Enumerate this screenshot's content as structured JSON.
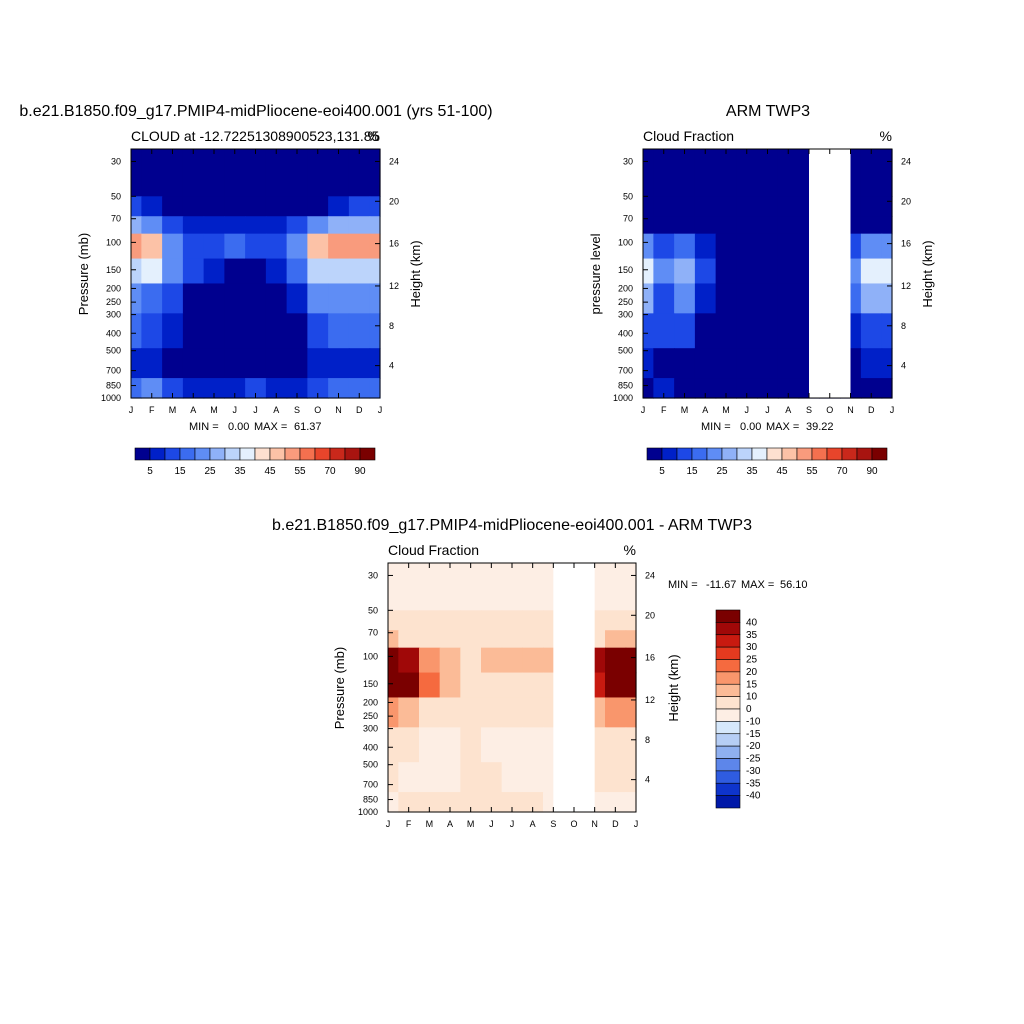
{
  "colors": {
    "sequential": [
      "#00008f",
      "#0020c8",
      "#1d48e6",
      "#3b6cf0",
      "#5f8df5",
      "#8fb1f8",
      "#bcd4fb",
      "#e4f0fd",
      "#fde0d0",
      "#fcc2a7",
      "#f99b7d",
      "#f4704f",
      "#e8452b",
      "#c9281b",
      "#a81410",
      "#7a0000"
    ],
    "diverging": [
      "#7a0000",
      "#a00808",
      "#c81a10",
      "#e43a1f",
      "#f56a3f",
      "#f9966c",
      "#fbbb97",
      "#fde3cf",
      "#fdeee4",
      "#d6e8fb",
      "#b6cef5",
      "#8fb0f0",
      "#5d86ea",
      "#2f5ce0",
      "#0e34cc",
      "#0019a8",
      "#000a7a"
    ]
  },
  "chart_data": [
    {
      "type": "heatmap",
      "title": "b.e21.B1850.f09_g17.PMIP4-midPliocene-eoi400.001 (yrs 51-100)",
      "subtitle_left": "CLOUD at -12.72251308900523,131.85",
      "subtitle_right": "%",
      "ylabel": "Pressure (mb)",
      "ylabel_right": "Height (km)",
      "x_ticks": [
        "J",
        "F",
        "M",
        "A",
        "M",
        "J",
        "J",
        "A",
        "S",
        "O",
        "N",
        "D",
        "J"
      ],
      "y_ticks": [
        "30",
        "50",
        "70",
        "100",
        "150",
        "200",
        "250",
        "300",
        "400",
        "500",
        "700",
        "850",
        "1000"
      ],
      "y_ticks_right": [
        "24",
        "20",
        "16",
        "12",
        "8",
        "4"
      ],
      "stats": {
        "min_label": "MIN =",
        "min": "0.00",
        "max_label": "MAX =",
        "max": "61.37"
      },
      "colorbar_labels": [
        "5",
        "15",
        "25",
        "35",
        "45",
        "55",
        "70",
        "90"
      ],
      "missing_months": [],
      "values": [
        [
          3,
          3,
          3,
          3,
          3,
          3,
          3,
          3,
          3,
          3,
          3,
          3,
          3
        ],
        [
          10,
          5,
          3,
          3,
          3,
          3,
          3,
          3,
          3,
          3,
          5,
          10,
          10
        ],
        [
          26,
          22,
          14,
          8,
          6,
          6,
          6,
          8,
          14,
          22,
          26,
          26,
          26
        ],
        [
          52,
          45,
          24,
          12,
          12,
          16,
          14,
          12,
          24,
          45,
          52,
          52,
          52
        ],
        [
          34,
          36,
          20,
          10,
          6,
          4,
          4,
          6,
          16,
          30,
          34,
          34,
          34
        ],
        [
          20,
          18,
          10,
          2,
          1,
          0,
          0,
          1,
          6,
          20,
          22,
          20,
          20
        ],
        [
          15,
          14,
          8,
          1,
          0,
          0,
          0,
          0,
          2,
          14,
          16,
          15,
          15
        ],
        [
          5,
          6,
          4,
          1,
          0,
          0,
          0,
          0,
          1,
          5,
          6,
          5,
          5
        ],
        [
          18,
          20,
          12,
          6,
          6,
          8,
          10,
          8,
          6,
          12,
          18,
          18,
          18
        ]
      ]
    },
    {
      "type": "heatmap",
      "title": "ARM TWP3",
      "subtitle_left": "Cloud Fraction",
      "subtitle_right": "%",
      "ylabel": "pressure level",
      "ylabel_right": "Height (km)",
      "x_ticks": [
        "J",
        "F",
        "M",
        "A",
        "M",
        "J",
        "J",
        "A",
        "S",
        "O",
        "N",
        "D",
        "J"
      ],
      "y_ticks": [
        "30",
        "50",
        "70",
        "100",
        "150",
        "200",
        "250",
        "300",
        "400",
        "500",
        "700",
        "850",
        "1000"
      ],
      "y_ticks_right": [
        "24",
        "20",
        "16",
        "12",
        "8",
        "4"
      ],
      "stats": {
        "min_label": "MIN =",
        "min": "0.00",
        "max_label": "MAX =",
        "max": "39.22"
      },
      "colorbar_labels": [
        "5",
        "15",
        "25",
        "35",
        "45",
        "55",
        "70",
        "90"
      ],
      "missing_months": [
        "S",
        "O"
      ],
      "values": [
        [
          1,
          1,
          1,
          1,
          1,
          1,
          1,
          1,
          1,
          1,
          1,
          1,
          1
        ],
        [
          1,
          1,
          1,
          1,
          1,
          1,
          1,
          1,
          1,
          1,
          1,
          1,
          1
        ],
        [
          2,
          2,
          4,
          2,
          1,
          1,
          1,
          1,
          1,
          1,
          1,
          2,
          2
        ],
        [
          22,
          12,
          18,
          8,
          2,
          1,
          1,
          1,
          1,
          1,
          14,
          24,
          22
        ],
        [
          36,
          20,
          28,
          10,
          2,
          1,
          1,
          1,
          1,
          1,
          24,
          38,
          36
        ],
        [
          26,
          14,
          20,
          6,
          1,
          1,
          1,
          1,
          1,
          1,
          18,
          26,
          26
        ],
        [
          12,
          10,
          10,
          4,
          1,
          1,
          1,
          1,
          1,
          1,
          8,
          12,
          12
        ],
        [
          6,
          4,
          4,
          2,
          1,
          1,
          1,
          1,
          1,
          1,
          4,
          6,
          6
        ],
        [
          4,
          6,
          4,
          2,
          1,
          1,
          1,
          1,
          1,
          1,
          4,
          4,
          4
        ]
      ]
    },
    {
      "type": "heatmap",
      "title": "b.e21.B1850.f09_g17.PMIP4-midPliocene-eoi400.001 - ARM TWP3",
      "subtitle_left": "Cloud Fraction",
      "subtitle_right": "%",
      "ylabel": "Pressure (mb)",
      "ylabel_right": "Height (km)",
      "x_ticks": [
        "J",
        "F",
        "M",
        "A",
        "M",
        "J",
        "J",
        "A",
        "S",
        "O",
        "N",
        "D",
        "J"
      ],
      "y_ticks": [
        "30",
        "50",
        "70",
        "100",
        "150",
        "200",
        "250",
        "300",
        "400",
        "500",
        "700",
        "850",
        "1000"
      ],
      "y_ticks_right": [
        "24",
        "20",
        "16",
        "12",
        "8",
        "4"
      ],
      "stats": {
        "min_label": "MIN =",
        "min": "-11.67",
        "max_label": "MAX =",
        "max": "56.10"
      },
      "colorbar_labels": [
        "40",
        "35",
        "30",
        "25",
        "20",
        "15",
        "10",
        "0",
        "-10",
        "-15",
        "-20",
        "-25",
        "-30",
        "-35",
        "-40"
      ],
      "missing_months": [
        "S",
        "O"
      ],
      "values": [
        [
          -2,
          -2,
          -2,
          -2,
          -2,
          -2,
          -2,
          -2,
          -2,
          -2,
          -2,
          -2,
          -2
        ],
        [
          2,
          2,
          2,
          2,
          2,
          2,
          2,
          2,
          2,
          2,
          2,
          2,
          2
        ],
        [
          10,
          8,
          6,
          4,
          4,
          4,
          4,
          4,
          4,
          4,
          6,
          10,
          10
        ],
        [
          40,
          38,
          18,
          10,
          8,
          10,
          10,
          10,
          14,
          14,
          36,
          40,
          40
        ],
        [
          44,
          40,
          20,
          12,
          8,
          6,
          6,
          6,
          8,
          8,
          34,
          44,
          44
        ],
        [
          18,
          14,
          8,
          4,
          4,
          2,
          2,
          2,
          4,
          4,
          12,
          18,
          18
        ],
        [
          4,
          2,
          -4,
          -4,
          2,
          -4,
          -2,
          -4,
          -2,
          -2,
          2,
          4,
          4
        ],
        [
          8,
          -2,
          -4,
          -2,
          2,
          2,
          -4,
          -2,
          -2,
          -2,
          4,
          8,
          8
        ],
        [
          -4,
          2,
          2,
          2,
          4,
          6,
          4,
          2,
          -2,
          -2,
          -2,
          -4,
          -4
        ]
      ]
    }
  ]
}
